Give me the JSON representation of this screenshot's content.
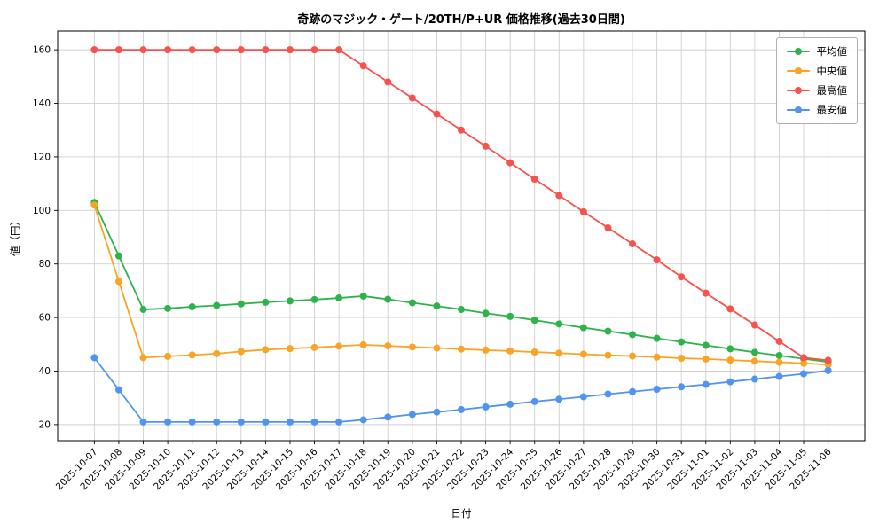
{
  "chart_data": {
    "type": "line",
    "title": "奇跡のマジック・ゲート/20TH/P+UR 価格推移(過去30日間)",
    "xlabel": "日付",
    "ylabel": "値（円）",
    "grid": true,
    "legend_position": "upper right",
    "ylim": [
      14,
      167
    ],
    "yticks": [
      20,
      40,
      60,
      80,
      100,
      120,
      140,
      160
    ],
    "x": [
      "2025-10-07",
      "2025-10-08",
      "2025-10-09",
      "2025-10-10",
      "2025-10-11",
      "2025-10-12",
      "2025-10-13",
      "2025-10-14",
      "2025-10-15",
      "2025-10-16",
      "2025-10-17",
      "2025-10-18",
      "2025-10-19",
      "2025-10-20",
      "2025-10-21",
      "2025-10-22",
      "2025-10-23",
      "2025-10-24",
      "2025-10-25",
      "2025-10-26",
      "2025-10-27",
      "2025-10-28",
      "2025-10-29",
      "2025-10-30",
      "2025-10-31",
      "2025-11-01",
      "2025-11-02",
      "2025-11-03",
      "2025-11-04",
      "2025-11-05",
      "2025-11-06"
    ],
    "series": [
      {
        "key": "average",
        "name": "平均値",
        "color": "#2eb34b",
        "values": [
          103,
          83,
          63,
          63.4,
          64,
          64.5,
          65.1,
          65.7,
          66.2,
          66.7,
          67.3,
          68,
          66.8,
          65.5,
          64.3,
          63,
          61.6,
          60.4,
          59,
          57.6,
          56.2,
          54.9,
          53.6,
          52.2,
          50.9,
          49.6,
          48.3,
          47,
          45.8,
          44.6,
          43.4
        ]
      },
      {
        "key": "median",
        "name": "中央値",
        "color": "#f9a425",
        "values": [
          102,
          73.5,
          45,
          45.5,
          46,
          46.5,
          47.3,
          48,
          48.4,
          48.8,
          49.3,
          49.8,
          49.4,
          49,
          48.6,
          48.2,
          47.8,
          47.5,
          47.1,
          46.7,
          46.3,
          45.9,
          45.6,
          45.2,
          44.8,
          44.5,
          44.1,
          43.7,
          43.3,
          42.9,
          42.4
        ]
      },
      {
        "key": "max",
        "name": "最高値",
        "color": "#f8514e",
        "values": [
          160,
          160,
          160,
          160,
          160,
          160,
          160,
          160,
          160,
          160,
          160,
          154,
          148,
          142,
          136,
          130,
          124,
          117.8,
          111.7,
          105.6,
          99.5,
          93.5,
          87.5,
          81.5,
          75.2,
          69.1,
          63.2,
          57.2,
          51.1,
          45,
          44
        ]
      },
      {
        "key": "min",
        "name": "最安値",
        "color": "#5194f0",
        "values": [
          45,
          33,
          21,
          21,
          21,
          21,
          21,
          21,
          21,
          21,
          21,
          21.8,
          22.8,
          23.8,
          24.7,
          25.6,
          26.6,
          27.6,
          28.6,
          29.5,
          30.4,
          31.4,
          32.3,
          33.2,
          34.1,
          35,
          36,
          37,
          38,
          39,
          40.2
        ]
      }
    ]
  }
}
